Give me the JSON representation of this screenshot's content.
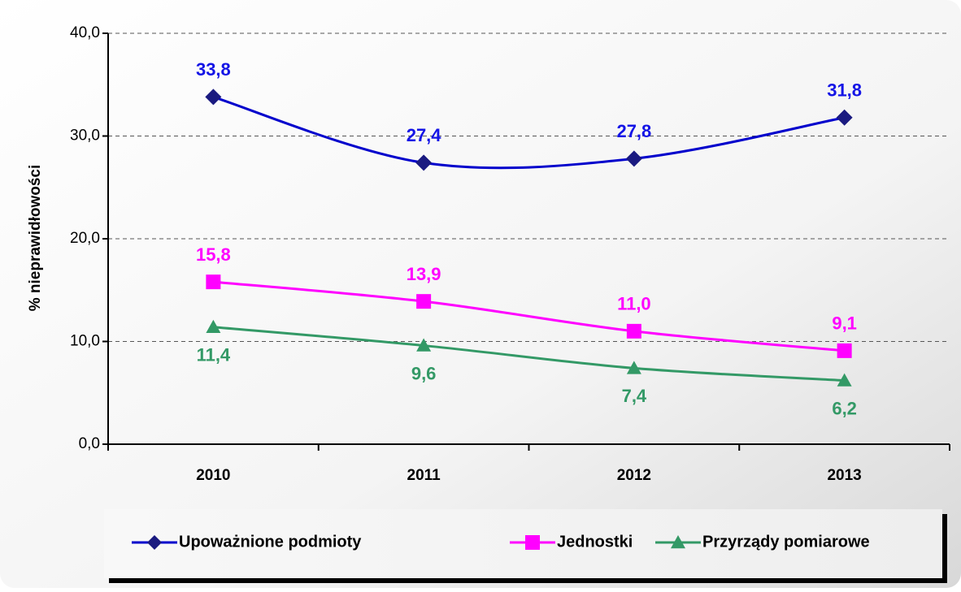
{
  "chart_data": {
    "type": "line",
    "y_label": "% nieprawidłowości",
    "categories": [
      "2010",
      "2011",
      "2012",
      "2013"
    ],
    "series": [
      {
        "name": "Upoważnione podmioty",
        "color": "#0000cc",
        "marker": "diamond",
        "marker_color": "#1a1a80",
        "label_color": "#1414e6",
        "label_side": "above",
        "values": [
          33.8,
          27.4,
          27.8,
          31.8
        ],
        "value_labels": [
          "33,8",
          "27,4",
          "27,8",
          "31,8"
        ]
      },
      {
        "name": "Jednostki",
        "color": "#ff00ff",
        "marker": "square",
        "marker_color": "#ff00ff",
        "label_color": "#ff00ff",
        "label_side": "above",
        "values": [
          15.8,
          13.9,
          11.0,
          9.1
        ],
        "value_labels": [
          "15,8",
          "13,9",
          "11,0",
          "9,1"
        ]
      },
      {
        "name": "Przyrządy pomiarowe",
        "color": "#339966",
        "marker": "triangle",
        "marker_color": "#339966",
        "label_color": "#339966",
        "label_side": "below",
        "values": [
          11.4,
          9.6,
          7.4,
          6.2
        ],
        "value_labels": [
          "11,4",
          "9,6",
          "7,4",
          "6,2"
        ]
      }
    ],
    "ylim": [
      0,
      40
    ],
    "yticks": [
      {
        "value": 0,
        "label": "0,0"
      },
      {
        "value": 10,
        "label": "10,0"
      },
      {
        "value": 20,
        "label": "20,0"
      },
      {
        "value": 30,
        "label": "30,0"
      },
      {
        "value": 40,
        "label": "40,0"
      }
    ],
    "grid": true,
    "smooth": true,
    "legend": "bottom"
  }
}
